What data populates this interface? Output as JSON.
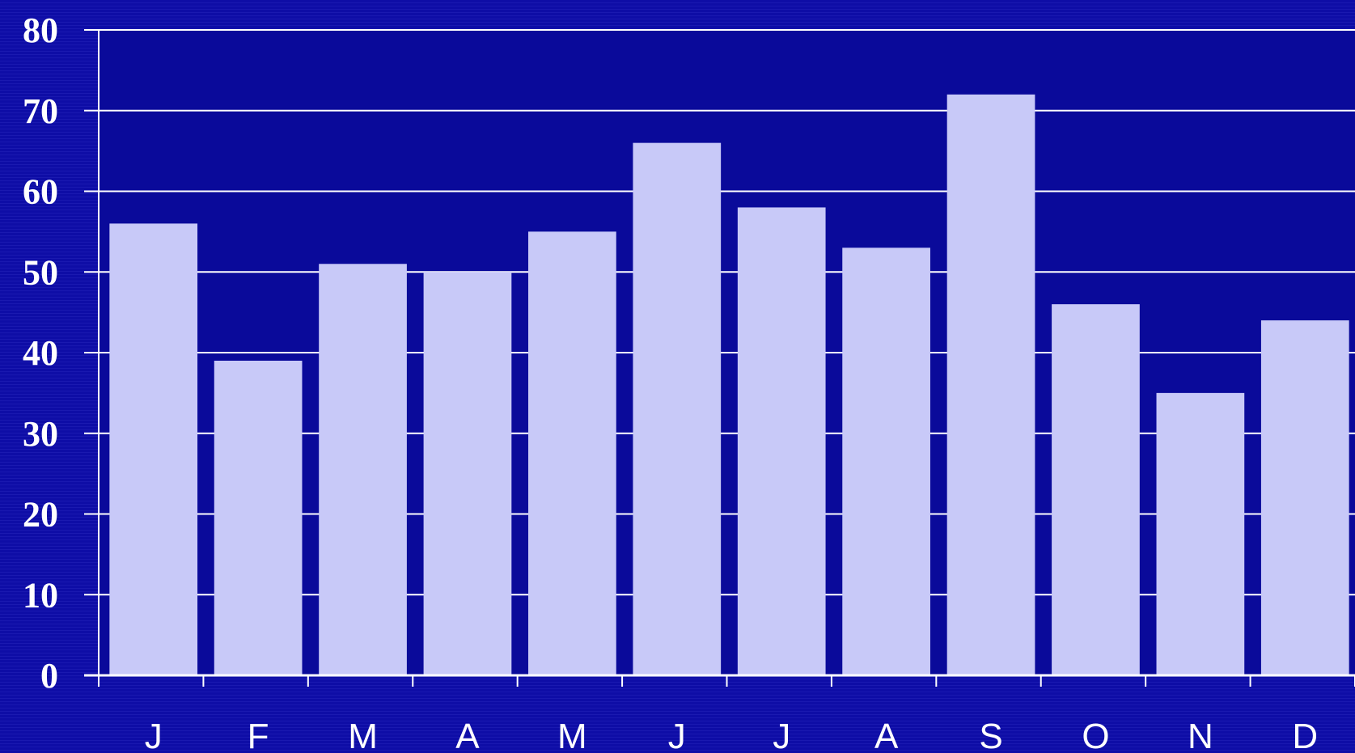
{
  "chart_data": {
    "type": "bar",
    "title": "",
    "xlabel": "",
    "ylabel": "",
    "categories": [
      "J",
      "F",
      "M",
      "A",
      "M",
      "J",
      "J",
      "A",
      "S",
      "O",
      "N",
      "D"
    ],
    "values": [
      56,
      39,
      51,
      50,
      55,
      66,
      58,
      53,
      72,
      46,
      35,
      44
    ],
    "ylim": [
      0,
      80
    ],
    "yticks": [
      "0",
      "10",
      "20",
      "30",
      "40",
      "50",
      "60",
      "70",
      "80"
    ],
    "grid": true,
    "legend": "none",
    "colors": {
      "background": "#0d0ca0",
      "plot_area": "#0a0a9a",
      "bar": "#c8c9f8",
      "grid": "#ffffff",
      "text": "#ffffff"
    }
  }
}
